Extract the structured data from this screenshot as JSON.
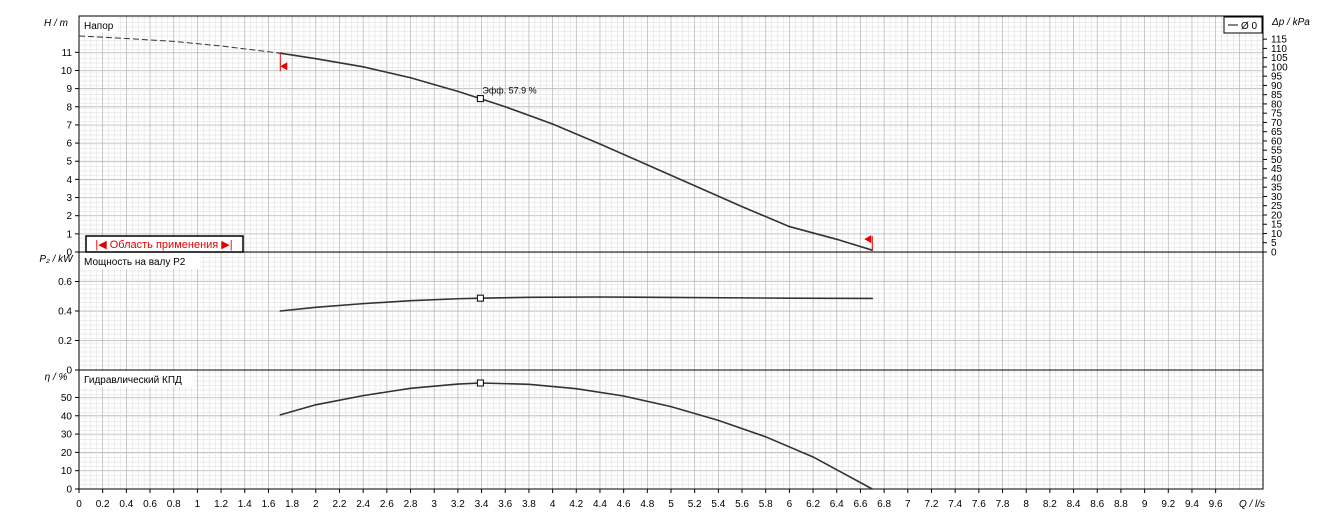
{
  "chart_data": [
    {
      "type": "line",
      "panel": "head",
      "title": "Напор",
      "ylabel": "H / m",
      "y2label": "Δp / kPa",
      "ylim": [
        0,
        13
      ],
      "y2lim": [
        0,
        127.5
      ],
      "yticks": [
        0,
        1,
        2,
        3,
        4,
        5,
        6,
        7,
        8,
        9,
        10,
        11
      ],
      "y2ticks": [
        0,
        5,
        10,
        15,
        20,
        25,
        30,
        35,
        40,
        45,
        50,
        55,
        60,
        65,
        70,
        75,
        80,
        85,
        90,
        95,
        100,
        105,
        110,
        115
      ],
      "legend": {
        "position": "top-right",
        "label": "Ø 0"
      },
      "range_label": "|◀ Область применения ▶|",
      "bep_label": "Эфф. 57.9 %",
      "bep": {
        "x": 3.39,
        "y": 8.45
      },
      "extrapolated": {
        "x": [
          0,
          0.4,
          0.8,
          1.2,
          1.7
        ],
        "y": [
          11.9,
          11.76,
          11.6,
          11.35,
          10.95
        ]
      },
      "series": [
        {
          "x": [
            1.7,
            2.0,
            2.4,
            2.8,
            3.2,
            3.39,
            3.6,
            4.0,
            4.4,
            4.8,
            5.2,
            5.6,
            6.0,
            6.4,
            6.7
          ],
          "y": [
            10.95,
            10.65,
            10.2,
            9.6,
            8.85,
            8.45,
            8.0,
            7.05,
            5.95,
            4.8,
            3.65,
            2.5,
            1.4,
            0.7,
            0.1
          ]
        }
      ],
      "range_markers": {
        "start": 1.7,
        "end": 6.7
      }
    },
    {
      "type": "line",
      "panel": "power",
      "title": "Мощность на валу P2",
      "ylabel": "P₂ / kW",
      "ylim": [
        0,
        0.8
      ],
      "yticks": [
        0,
        0.2,
        0.4,
        0.6
      ],
      "bep": {
        "x": 3.39,
        "y": 0.487
      },
      "series": [
        {
          "x": [
            1.7,
            2.0,
            2.4,
            2.8,
            3.2,
            3.39,
            3.8,
            4.4,
            5.0,
            5.6,
            6.0,
            6.7
          ],
          "y": [
            0.4,
            0.425,
            0.45,
            0.47,
            0.483,
            0.487,
            0.493,
            0.495,
            0.492,
            0.489,
            0.487,
            0.485
          ]
        }
      ]
    },
    {
      "type": "line",
      "panel": "efficiency",
      "title": "Гидравлический КПД",
      "ylabel": "η / %",
      "ylim": [
        0,
        65
      ],
      "yticks": [
        0,
        10,
        20,
        30,
        40,
        50
      ],
      "bep": {
        "x": 3.39,
        "y": 57.9
      },
      "series": [
        {
          "x": [
            1.7,
            2.0,
            2.4,
            2.8,
            3.2,
            3.39,
            3.8,
            4.2,
            4.6,
            5.0,
            5.4,
            5.8,
            6.2,
            6.7
          ],
          "y": [
            40.5,
            46,
            51,
            55,
            57.3,
            57.9,
            57.2,
            54.8,
            50.8,
            45,
            37.5,
            28.5,
            17.5,
            0
          ]
        }
      ]
    }
  ],
  "x_axis": {
    "label": "Q / l/s",
    "xlim": [
      0,
      10.0
    ],
    "ticks": [
      "0",
      "0.2",
      "0.4",
      "0.6",
      "0.8",
      "1",
      "1.2",
      "1.4",
      "1.6",
      "1.8",
      "2",
      "2.2",
      "2.4",
      "2.6",
      "2.8",
      "3",
      "3.2",
      "3.4",
      "3.6",
      "3.8",
      "4",
      "4.2",
      "4.4",
      "4.6",
      "4.8",
      "5",
      "5.2",
      "5.4",
      "5.6",
      "5.8",
      "6",
      "6.2",
      "6.4",
      "6.6",
      "6.8",
      "7",
      "7.2",
      "7.4",
      "7.6",
      "7.8",
      "8",
      "8.2",
      "8.4",
      "8.6",
      "8.8",
      "9",
      "9.2",
      "9.4",
      "9.6"
    ]
  },
  "colors": {
    "curve": "#333333",
    "marker_red": "#e00000",
    "grid_minor": "#dcdcdc",
    "grid_major": "#b4b4b4"
  }
}
